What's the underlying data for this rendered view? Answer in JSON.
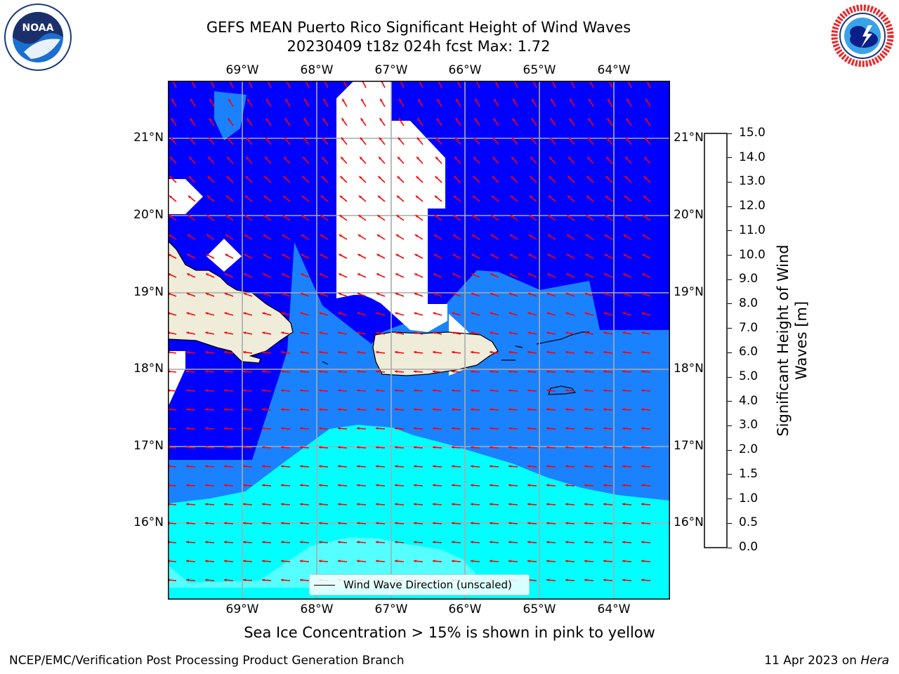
{
  "title": {
    "line1": "GEFS MEAN Puerto Rico Significant Height of Wind Waves",
    "line2": "20230409 t18z 024h fcst   Max: 1.72"
  },
  "map": {
    "lon_ticks": [
      "69°W",
      "68°W",
      "67°W",
      "66°W",
      "65°W",
      "64°W"
    ],
    "lat_ticks": [
      "21°N",
      "20°N",
      "19°N",
      "18°N",
      "17°N",
      "16°N"
    ],
    "extent": {
      "lon_min": -69.98,
      "lon_max": -63.23,
      "lat_min": 15.02,
      "lat_max": 21.75
    },
    "wind_direction": "east to west",
    "colors": {
      "band_0_0.5": "#0000ff",
      "band_0.5_1.0": "#1a82ff",
      "band_1.0_1.5": "#00ffff",
      "band_1.5_2.0": "#55ffff",
      "land": "#efedda",
      "arrow": "#ff0000"
    }
  },
  "legend": {
    "label": "Wind Wave Direction (unscaled)"
  },
  "colorbar": {
    "label": "Significant Height of Wind Waves [m]",
    "ticks": [
      "0.0",
      "0.5",
      "1.0",
      "1.5",
      "2.0",
      "3.0",
      "4.0",
      "5.0",
      "6.0",
      "7.0",
      "8.0",
      "9.0",
      "10.0",
      "11.0",
      "12.0",
      "13.0",
      "14.0",
      "15.0"
    ],
    "colors": [
      "#0000ff",
      "#1a82ff",
      "#00ffff",
      "#55ffff",
      "#aaffff",
      "#55ff77",
      "#00dd00",
      "#55ee00",
      "#99ee00",
      "#ccff00",
      "#eeff00",
      "#ffff00",
      "#ffd000",
      "#ffb000",
      "#ff8c00",
      "#ff5a00",
      "#ff2a00"
    ]
  },
  "footer": {
    "sea_ice_note": "Sea Ice Concentration > 15% is shown in pink to yellow",
    "left": "NCEP/EMC/Verification Post Processing Product Generation Branch",
    "right_date": "11 Apr 2023 on",
    "right_host": "Hera"
  },
  "logos": {
    "left": "NOAA",
    "right": "NATIONAL WEATHER SERVICE"
  }
}
